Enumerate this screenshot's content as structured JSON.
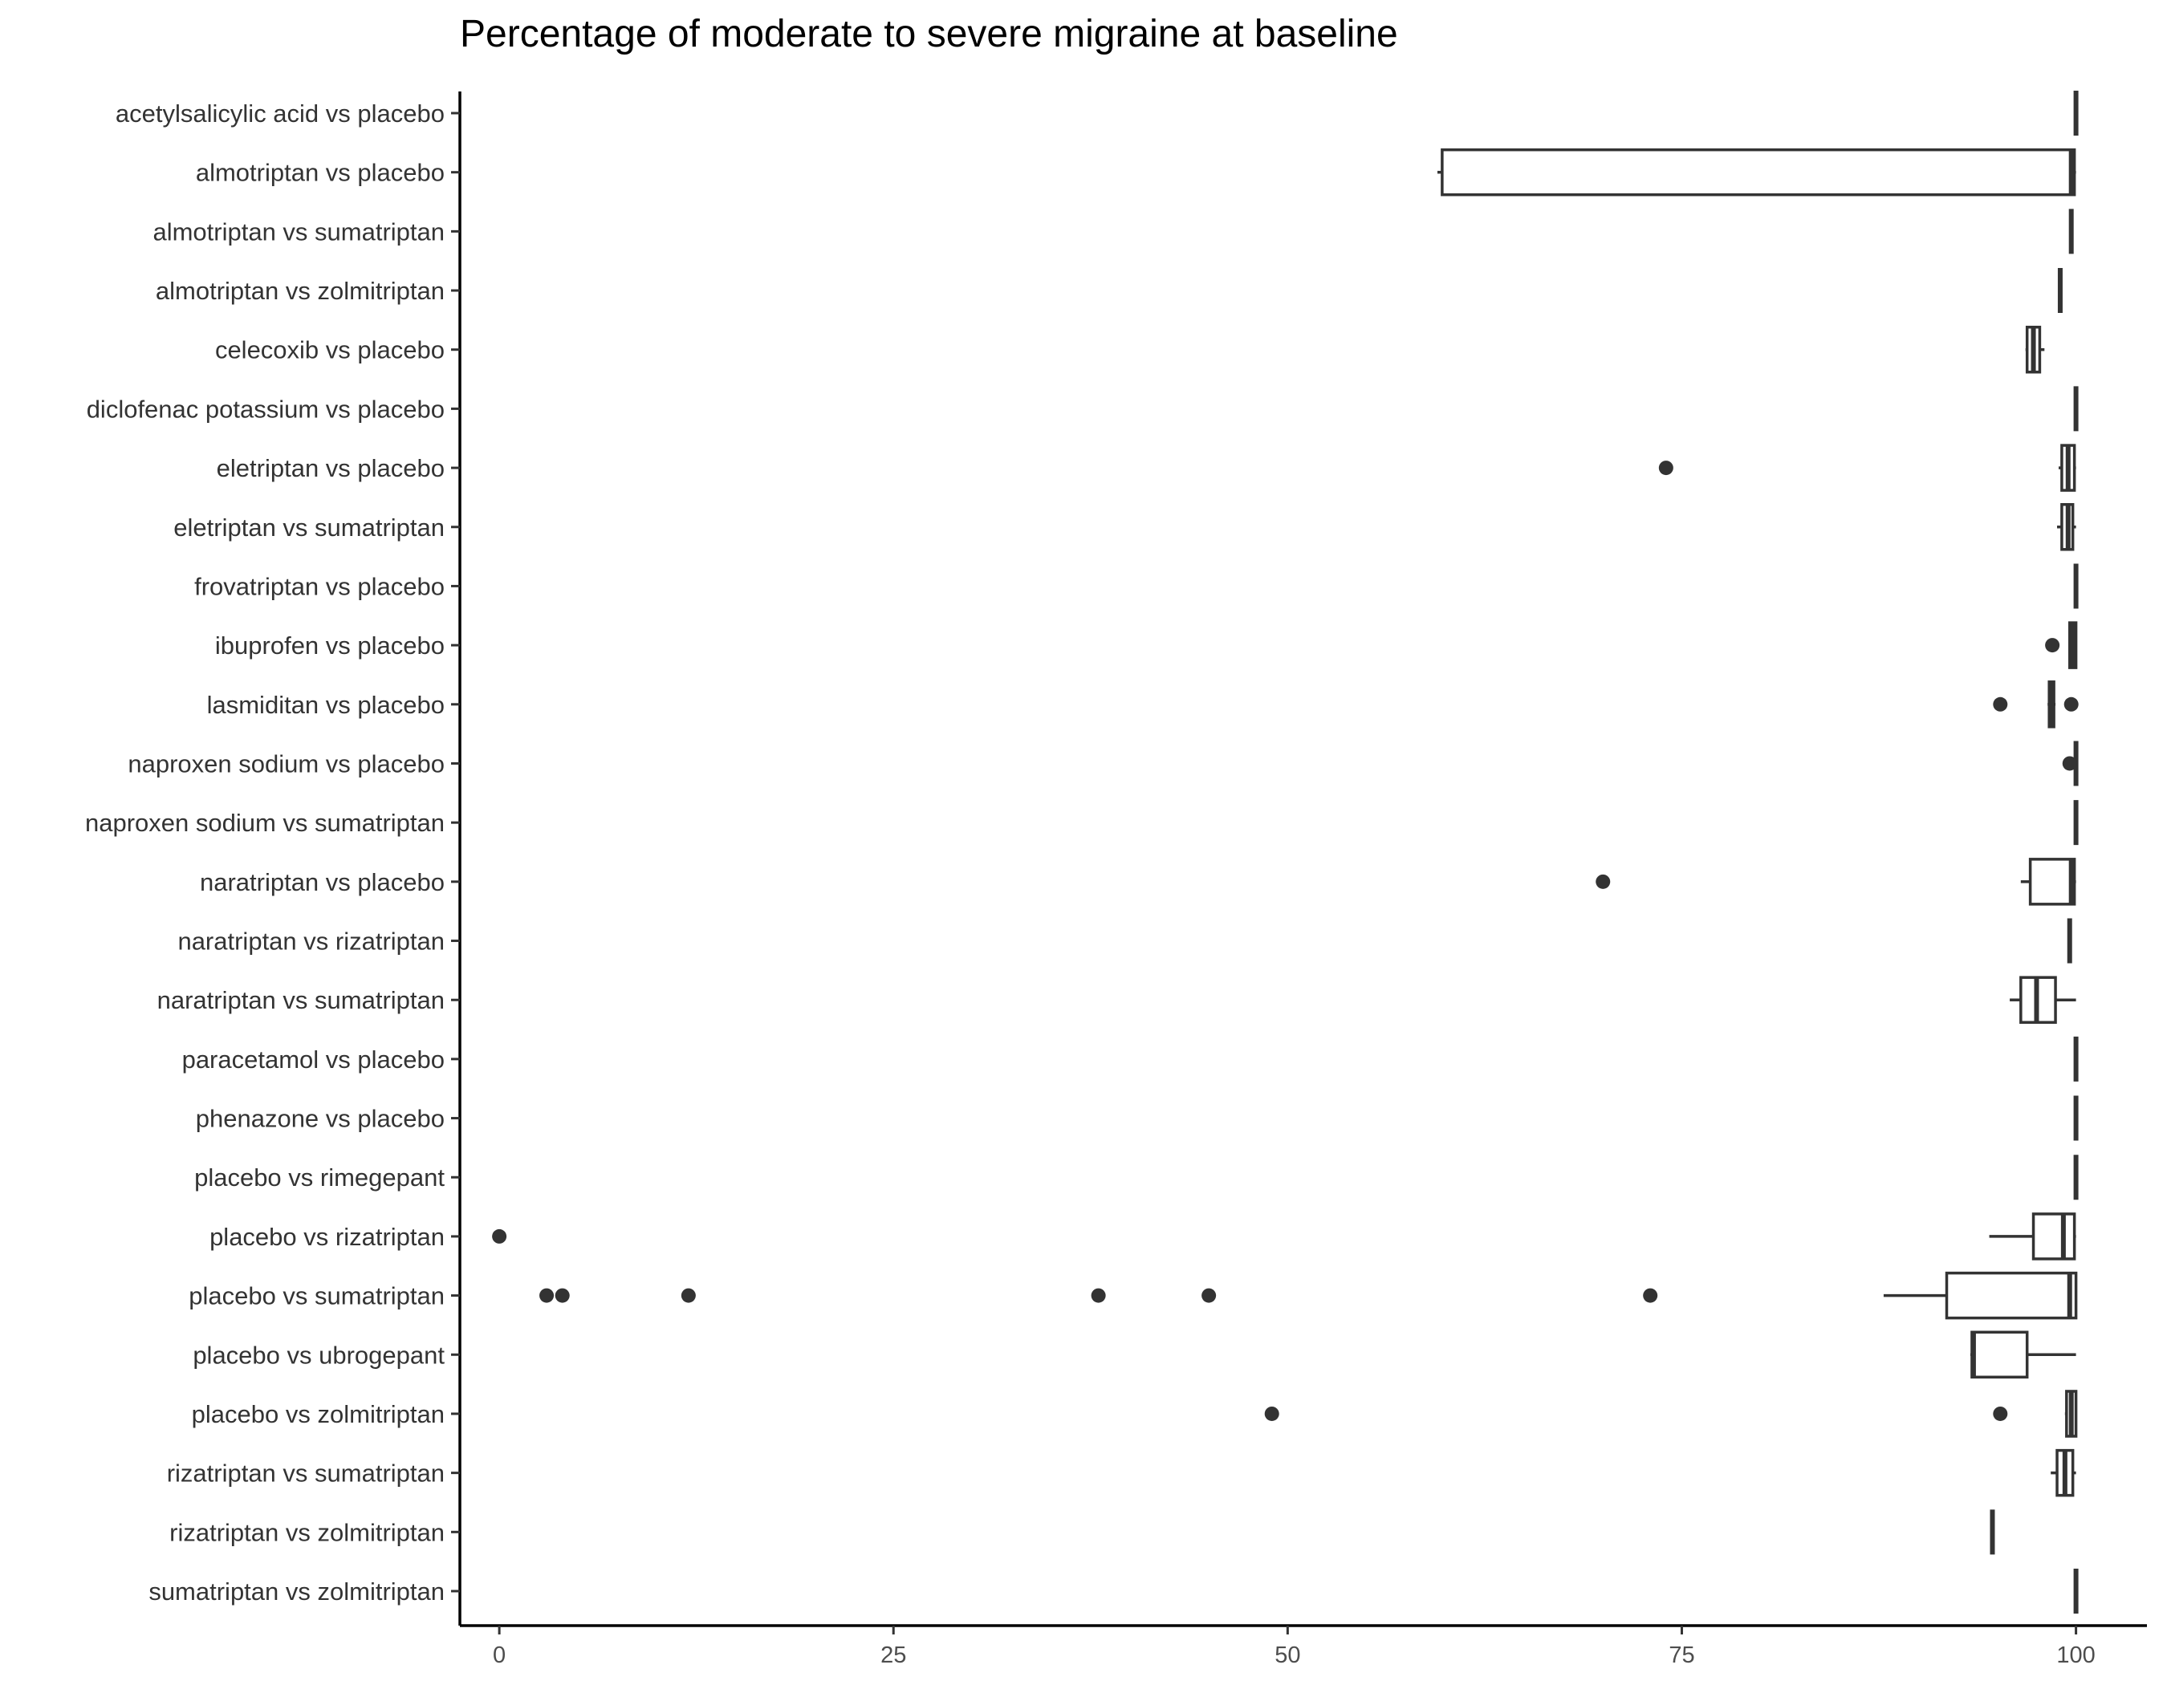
{
  "chart_data": {
    "type": "boxplot",
    "orientation": "horizontal",
    "title": "Percentage of moderate to severe migraine at baseline",
    "xlabel": "",
    "ylabel": "",
    "xlim": [
      -2.5,
      104.5
    ],
    "xticks": [
      0,
      25,
      50,
      75,
      100
    ],
    "xtick_labels": [
      "0",
      "25",
      "50",
      "75",
      "100"
    ],
    "grid": false,
    "colors": {
      "box_fill": "#ffffff",
      "stroke": "#333333",
      "text": "#333333",
      "title": "#000000"
    },
    "series": [
      {
        "category": "acetylsalicylic acid vs placebo",
        "min": 100,
        "q1": 100,
        "median": 100,
        "q3": 100,
        "max": 100,
        "outliers": []
      },
      {
        "category": "almotriptan vs placebo",
        "min": 59.5,
        "q1": 59.8,
        "median": 99.7,
        "q3": 99.9,
        "max": 100,
        "outliers": []
      },
      {
        "category": "almotriptan vs sumatriptan",
        "min": 99.7,
        "q1": 99.7,
        "median": 99.7,
        "q3": 99.7,
        "max": 99.7,
        "outliers": []
      },
      {
        "category": "almotriptan vs zolmitriptan",
        "min": 99,
        "q1": 99,
        "median": 99,
        "q3": 99,
        "max": 99,
        "outliers": []
      },
      {
        "category": "celecoxib vs placebo",
        "min": 96.8,
        "q1": 96.9,
        "median": 97.3,
        "q3": 97.7,
        "max": 98,
        "outliers": []
      },
      {
        "category": "diclofenac potassium vs placebo",
        "min": 100,
        "q1": 100,
        "median": 100,
        "q3": 100,
        "max": 100,
        "outliers": []
      },
      {
        "category": "eletriptan vs placebo",
        "min": 98.9,
        "q1": 99.1,
        "median": 99.5,
        "q3": 99.9,
        "max": 100,
        "outliers": [
          74
        ]
      },
      {
        "category": "eletriptan vs sumatriptan",
        "min": 98.8,
        "q1": 99.1,
        "median": 99.5,
        "q3": 99.8,
        "max": 100,
        "outliers": []
      },
      {
        "category": "frovatriptan vs placebo",
        "min": 100,
        "q1": 100,
        "median": 100,
        "q3": 100,
        "max": 100,
        "outliers": []
      },
      {
        "category": "ibuprofen vs placebo",
        "min": 99.6,
        "q1": 99.6,
        "median": 99.8,
        "q3": 100,
        "max": 100,
        "outliers": [
          98.5
        ]
      },
      {
        "category": "lasmiditan vs placebo",
        "min": 98.2,
        "q1": 98.3,
        "median": 98.4,
        "q3": 98.6,
        "max": 98.7,
        "outliers": [
          95.2,
          99.7
        ]
      },
      {
        "category": "naproxen sodium vs placebo",
        "min": 100,
        "q1": 100,
        "median": 100,
        "q3": 100,
        "max": 100,
        "outliers": [
          99.6
        ]
      },
      {
        "category": "naproxen sodium vs sumatriptan",
        "min": 100,
        "q1": 100,
        "median": 100,
        "q3": 100,
        "max": 100,
        "outliers": []
      },
      {
        "category": "naratriptan vs placebo",
        "min": 96.5,
        "q1": 97.1,
        "median": 99.7,
        "q3": 99.9,
        "max": 100,
        "outliers": [
          70
        ]
      },
      {
        "category": "naratriptan vs rizatriptan",
        "min": 99.6,
        "q1": 99.6,
        "median": 99.6,
        "q3": 99.6,
        "max": 99.6,
        "outliers": []
      },
      {
        "category": "naratriptan vs sumatriptan",
        "min": 95.8,
        "q1": 96.5,
        "median": 97.5,
        "q3": 98.7,
        "max": 100,
        "outliers": []
      },
      {
        "category": "paracetamol vs placebo",
        "min": 100,
        "q1": 100,
        "median": 100,
        "q3": 100,
        "max": 100,
        "outliers": []
      },
      {
        "category": "phenazone vs placebo",
        "min": 100,
        "q1": 100,
        "median": 100,
        "q3": 100,
        "max": 100,
        "outliers": []
      },
      {
        "category": "placebo vs rimegepant",
        "min": 100,
        "q1": 100,
        "median": 100,
        "q3": 100,
        "max": 100,
        "outliers": []
      },
      {
        "category": "placebo vs rizatriptan",
        "min": 94.5,
        "q1": 97.3,
        "median": 99.2,
        "q3": 99.9,
        "max": 100,
        "outliers": [
          0
        ]
      },
      {
        "category": "placebo vs sumatriptan",
        "min": 87.8,
        "q1": 91.8,
        "median": 99.6,
        "q3": 100,
        "max": 100,
        "outliers": [
          3,
          4,
          12,
          38,
          45,
          73
        ]
      },
      {
        "category": "placebo vs ubrogepant",
        "min": 93.3,
        "q1": 93.4,
        "median": 93.5,
        "q3": 96.9,
        "max": 100,
        "outliers": []
      },
      {
        "category": "placebo vs zolmitriptan",
        "min": 99.3,
        "q1": 99.4,
        "median": 99.7,
        "q3": 100,
        "max": 100,
        "outliers": [
          49,
          95.2
        ]
      },
      {
        "category": "rizatriptan vs sumatriptan",
        "min": 98.4,
        "q1": 98.8,
        "median": 99.3,
        "q3": 99.8,
        "max": 100,
        "outliers": []
      },
      {
        "category": "rizatriptan vs zolmitriptan",
        "min": 94.7,
        "q1": 94.7,
        "median": 94.7,
        "q3": 94.7,
        "max": 94.7,
        "outliers": []
      },
      {
        "category": "sumatriptan vs zolmitriptan",
        "min": 100,
        "q1": 100,
        "median": 100,
        "q3": 100,
        "max": 100,
        "outliers": []
      }
    ]
  }
}
